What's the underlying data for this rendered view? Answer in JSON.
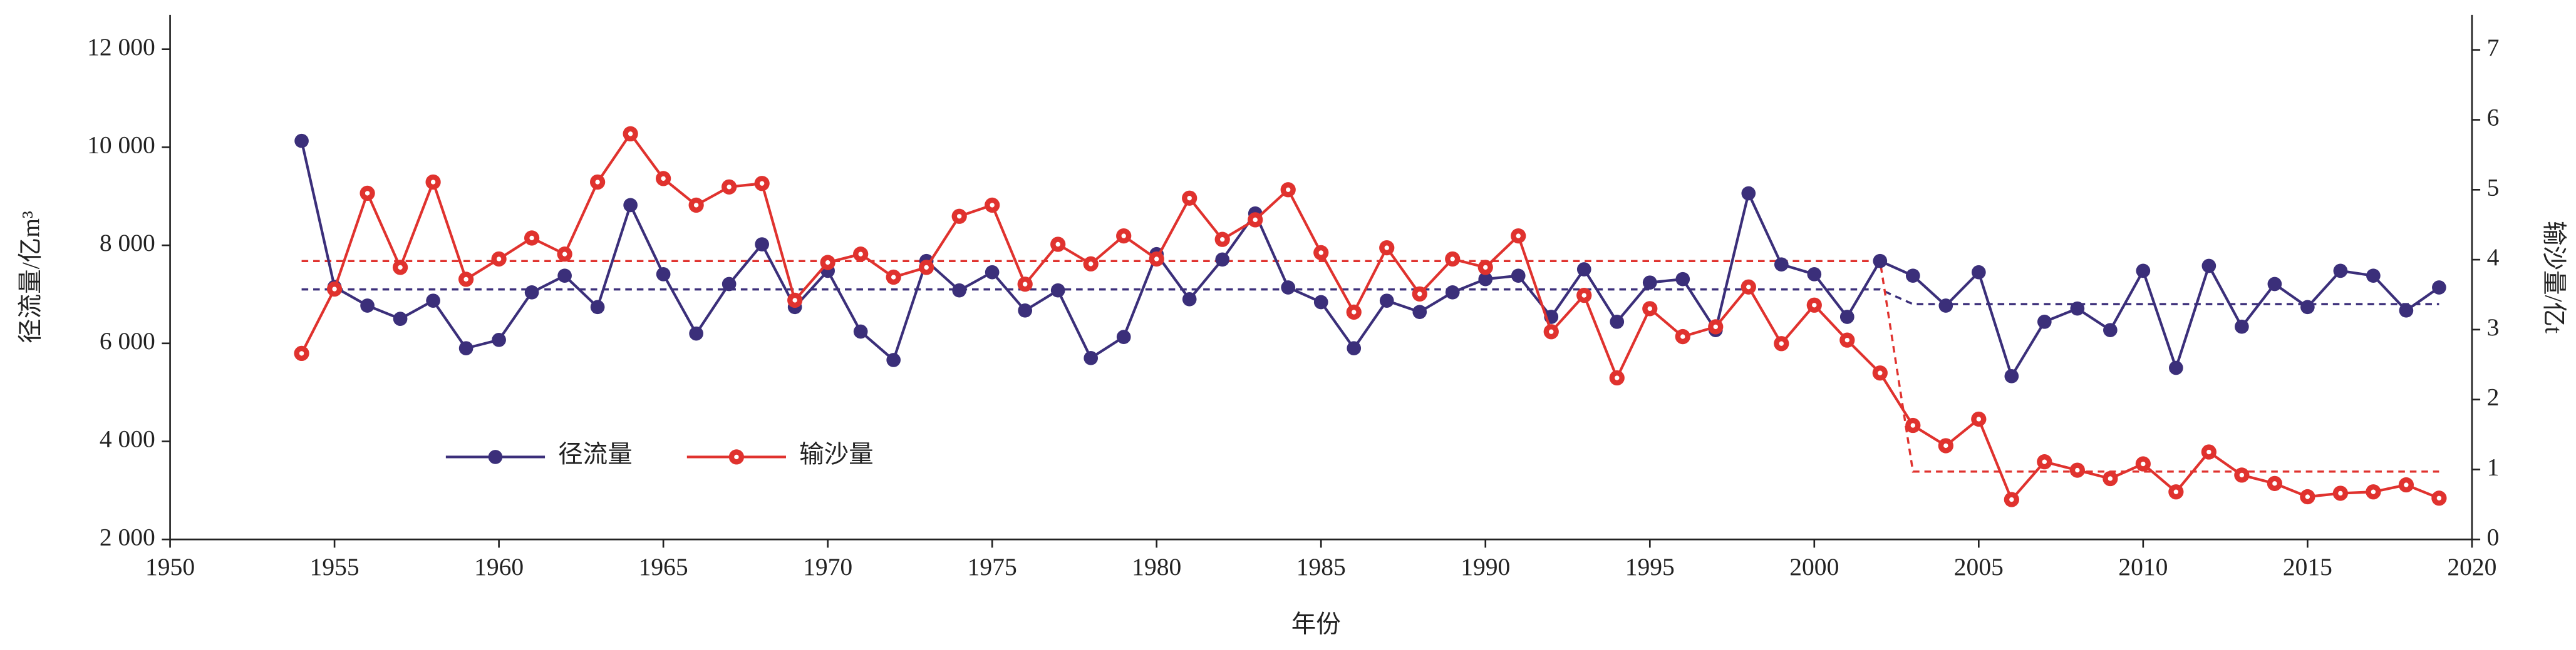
{
  "chart_data": {
    "type": "line",
    "xlabel": "年份",
    "ylabel": "径流量/亿m³",
    "y2label": "输沙量/亿t",
    "x": [
      1954,
      1955,
      1956,
      1957,
      1958,
      1959,
      1960,
      1961,
      1962,
      1963,
      1964,
      1965,
      1966,
      1967,
      1968,
      1969,
      1970,
      1971,
      1972,
      1973,
      1974,
      1975,
      1976,
      1977,
      1978,
      1979,
      1980,
      1981,
      1982,
      1983,
      1984,
      1985,
      1986,
      1987,
      1988,
      1989,
      1990,
      1991,
      1992,
      1993,
      1994,
      1995,
      1996,
      1997,
      1998,
      1999,
      2000,
      2001,
      2002,
      2003,
      2004,
      2005,
      2006,
      2007,
      2008,
      2009,
      2010,
      2011,
      2012,
      2013,
      2014,
      2015,
      2016,
      2017,
      2018,
      2019
    ],
    "series": [
      {
        "name": "径流量",
        "color": "#3b2f7a",
        "axis": "y",
        "marker": "filled",
        "values": [
          10130,
          7150,
          6770,
          6500,
          6870,
          5900,
          6070,
          7040,
          7380,
          6740,
          8820,
          7410,
          6200,
          7210,
          8020,
          6740,
          7480,
          6240,
          5660,
          7680,
          7080,
          7450,
          6670,
          7080,
          5700,
          6130,
          7820,
          6900,
          7710,
          8650,
          7140,
          6840,
          5900,
          6870,
          6640,
          7040,
          7310,
          7380,
          6540,
          7510,
          6440,
          7240,
          7310,
          6270,
          9060,
          7610,
          7410,
          6540,
          7680,
          7380,
          6770,
          7450,
          5330,
          6440,
          6710,
          6270,
          7480,
          5500,
          7580,
          6340,
          7210,
          6740,
          7480,
          7380,
          6670,
          7140
        ]
      },
      {
        "name": "输沙量",
        "color": "#e0322e",
        "axis": "y2",
        "marker": "ring",
        "values": [
          2.66,
          3.58,
          4.95,
          3.89,
          5.11,
          3.72,
          4.01,
          4.31,
          4.08,
          5.11,
          5.8,
          5.16,
          4.78,
          5.04,
          5.09,
          3.42,
          3.96,
          4.08,
          3.75,
          3.89,
          4.62,
          4.78,
          3.65,
          4.22,
          3.94,
          4.34,
          4.01,
          4.88,
          4.29,
          4.57,
          5.0,
          4.1,
          3.25,
          4.17,
          3.51,
          4.01,
          3.89,
          4.34,
          2.97,
          3.49,
          2.31,
          3.3,
          2.9,
          3.04,
          3.61,
          2.8,
          3.35,
          2.85,
          2.38,
          1.63,
          1.34,
          1.72,
          0.57,
          1.11,
          0.99,
          0.87,
          1.08,
          0.68,
          1.25,
          0.92,
          0.8,
          0.61,
          0.66,
          0.68,
          0.78,
          0.59
        ]
      }
    ],
    "reference_lines": [
      {
        "color": "#3b2f7a",
        "axis": "y",
        "x": [
          1954,
          2002,
          2003,
          2019
        ],
        "values": [
          7100,
          7100,
          6800,
          6800
        ]
      },
      {
        "color": "#e0322e",
        "axis": "y2",
        "x": [
          1954,
          2002,
          2003,
          2019
        ],
        "values": [
          3.98,
          3.98,
          0.97,
          0.97
        ]
      }
    ],
    "xlim": [
      1950,
      2020
    ],
    "xticks": [
      1950,
      1955,
      1960,
      1965,
      1970,
      1975,
      1980,
      1985,
      1990,
      1995,
      2000,
      2005,
      2010,
      2015,
      2020
    ],
    "ylim": [
      2000,
      12700
    ],
    "yticks": [
      {
        "value": 2000,
        "label": "2 000"
      },
      {
        "value": 4000,
        "label": "4 000"
      },
      {
        "value": 6000,
        "label": "6 000"
      },
      {
        "value": 8000,
        "label": "8 000"
      },
      {
        "value": 10000,
        "label": "10 000"
      },
      {
        "value": 12000,
        "label": "12 000"
      }
    ],
    "y2lim": [
      0,
      7.5
    ],
    "y2ticks": [
      0,
      1,
      2,
      3,
      4,
      5,
      6,
      7
    ],
    "grid": false,
    "legend": "lower left"
  }
}
